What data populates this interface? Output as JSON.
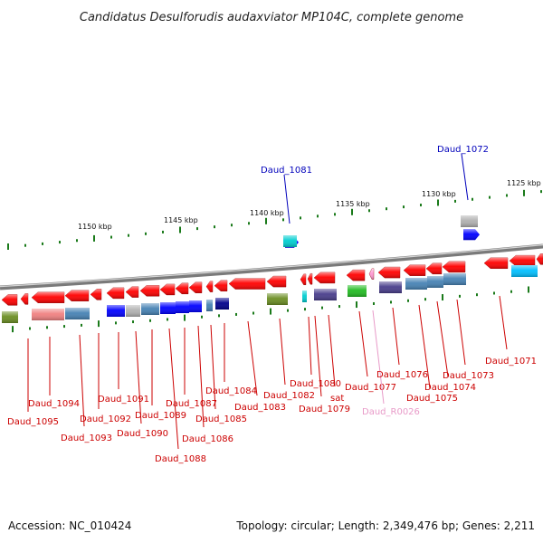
{
  "title": "Candidatus Desulforudis audaxviator MP104C, complete genome",
  "footer": {
    "accession": "Accession: NC_010424",
    "topology": "Topology: circular; Length: 2,349,476 bp; Genes: 2,211"
  },
  "colors": {
    "backbone": "#888888",
    "tick": "#1a7a1a",
    "label_red": "#cc0000",
    "label_blue": "#0000bb",
    "label_pink": "#e89ac8",
    "gene_red": "#ff0000",
    "rna_pink": "#ff9ad5",
    "cog_green": "#6b8e23",
    "cog_pink": "#f08080",
    "cog_steel": "#4682b4",
    "cog_blue": "#0000ff",
    "cog_navy": "#00008b",
    "cog_gray": "#b0b0b0",
    "cog_slate": "#483d8b",
    "cog_lime": "#22bb22",
    "cog_cyan": "#00ced1",
    "cog_sky": "#00bfff"
  },
  "tick_labels": [
    "1150 kbp",
    "1145 kbp",
    "1140 kbp",
    "1135 kbp",
    "1130 kbp",
    "1125 kbp"
  ],
  "genes": [
    {
      "label": "Daud_1095",
      "color": "label_red"
    },
    {
      "label": "Daud_1094",
      "color": "label_red"
    },
    {
      "label": "Daud_1093",
      "color": "label_red"
    },
    {
      "label": "Daud_1092",
      "color": "label_red"
    },
    {
      "label": "Daud_1091",
      "color": "label_red"
    },
    {
      "label": "Daud_1090",
      "color": "label_red"
    },
    {
      "label": "Daud_1089",
      "color": "label_red"
    },
    {
      "label": "Daud_1088",
      "color": "label_red"
    },
    {
      "label": "Daud_1087",
      "color": "label_red"
    },
    {
      "label": "Daud_1086",
      "color": "label_red"
    },
    {
      "label": "Daud_1085",
      "color": "label_red"
    },
    {
      "label": "Daud_1084",
      "color": "label_red"
    },
    {
      "label": "Daud_1083",
      "color": "label_red"
    },
    {
      "label": "Daud_1082",
      "color": "label_red"
    },
    {
      "label": "Daud_1081",
      "color": "label_blue"
    },
    {
      "label": "Daud_1080",
      "color": "label_red"
    },
    {
      "label": "Daud_1079",
      "color": "label_red"
    },
    {
      "label": "sat",
      "color": "label_red"
    },
    {
      "label": "Daud_1077",
      "color": "label_red"
    },
    {
      "label": "Daud_R0026",
      "color": "label_pink"
    },
    {
      "label": "Daud_1076",
      "color": "label_red"
    },
    {
      "label": "Daud_1075",
      "color": "label_red"
    },
    {
      "label": "Daud_1074",
      "color": "label_red"
    },
    {
      "label": "Daud_1073",
      "color": "label_red"
    },
    {
      "label": "Daud_1072",
      "color": "label_blue"
    },
    {
      "label": "Daud_1071",
      "color": "label_red"
    }
  ]
}
